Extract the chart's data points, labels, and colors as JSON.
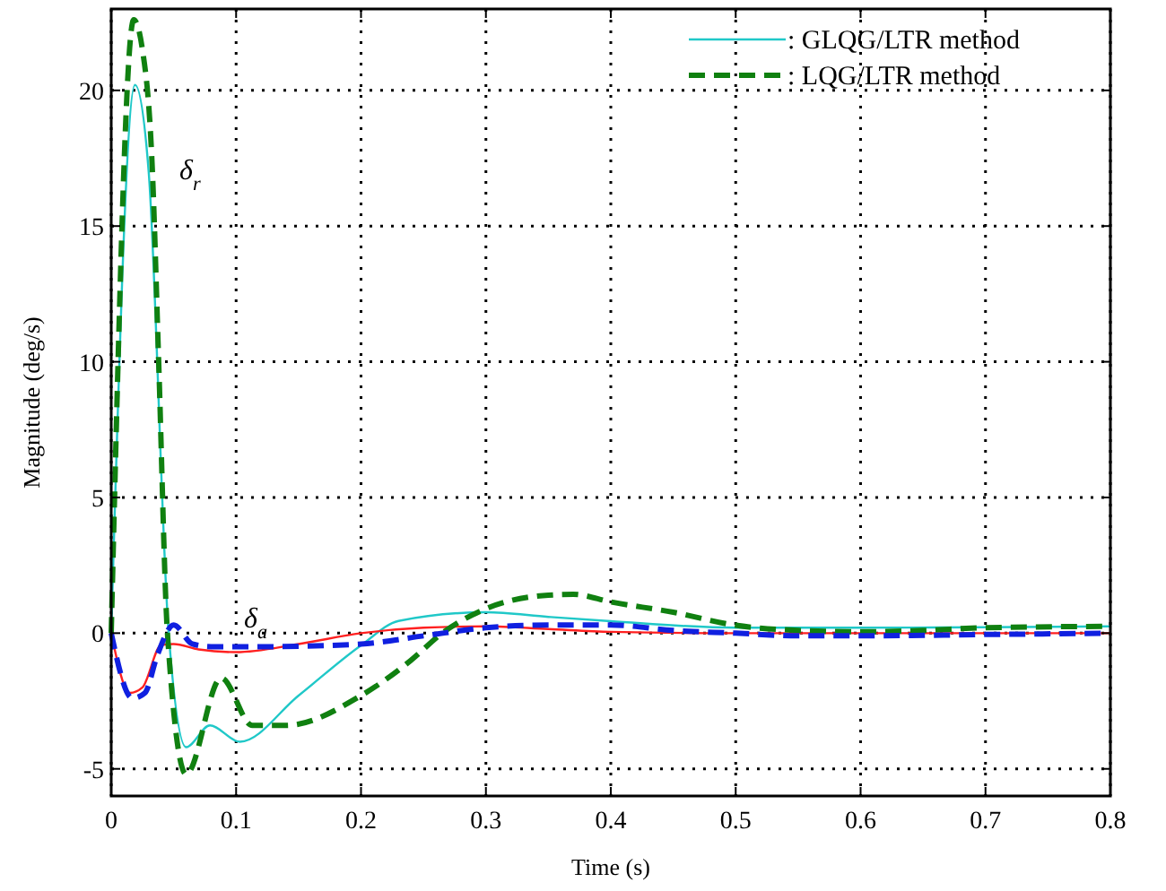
{
  "chart_data": {
    "type": "line",
    "xlabel": "Time (s)",
    "ylabel": "Magnitude (deg/s)",
    "xlim": [
      0,
      0.8
    ],
    "ylim": [
      -6,
      23
    ],
    "xticks": [
      0,
      0.1,
      0.2,
      0.3,
      0.4,
      0.5,
      0.6,
      0.7,
      0.8
    ],
    "yticks": [
      -5,
      0,
      5,
      10,
      15,
      20
    ],
    "grid": true,
    "legend": "top right",
    "annotations": [
      "δ$_{r}$",
      "δ$_{a}$"
    ],
    "series": [
      {
        "name": ": GLQG/LTR method",
        "color": "#20c8c8",
        "line_style": "solid",
        "x": [
          0,
          0.019,
          0.03,
          0.046,
          0.06,
          0.079,
          0.103,
          0.15,
          0.2,
          0.23,
          0.3,
          0.35,
          0.4,
          0.5,
          0.6,
          0.7,
          0.8
        ],
        "values": [
          0,
          20.2,
          17,
          0,
          -4.2,
          -3.4,
          -4.0,
          -2.3,
          -0.45,
          0.45,
          0.77,
          0.6,
          0.44,
          0.2,
          0.2,
          0.22,
          0.25
        ]
      },
      {
        "color": "#ff2020",
        "line_style": "solid",
        "x": [
          0,
          0.015,
          0.025,
          0.04,
          0.05,
          0.07,
          0.1,
          0.15,
          0.2,
          0.25,
          0.3,
          0.35,
          0.4,
          0.5,
          0.6,
          0.7,
          0.8
        ],
        "values": [
          0,
          -2.2,
          -2.0,
          -0.44,
          -0.4,
          -0.6,
          -0.7,
          -0.4,
          0,
          0.2,
          0.25,
          0.15,
          0.05,
          0,
          0,
          0,
          0
        ]
      },
      {
        "name": ": LQG/LTR method",
        "color": "#108010",
        "line_style": "dashed",
        "x": [
          0,
          0.018,
          0.025,
          0.033,
          0.038,
          0.045,
          0.06,
          0.088,
          0.113,
          0.14,
          0.2,
          0.24,
          0.265,
          0.3,
          0.35,
          0.37,
          0.4,
          0.45,
          0.5,
          0.55,
          0.6,
          0.65,
          0.7,
          0.8
        ],
        "values": [
          0,
          22.6,
          21.5,
          17,
          10,
          0,
          -5.2,
          -1.65,
          -3.4,
          -3.4,
          -2.3,
          -1,
          0,
          0.9,
          1.4,
          1.43,
          1.15,
          0.77,
          0.29,
          0.1,
          0.05,
          0.1,
          0.2,
          0.25
        ]
      },
      {
        "color": "#1020e0",
        "line_style": "dashed",
        "x": [
          0,
          0.017,
          0.027,
          0.037,
          0.05,
          0.065,
          0.08,
          0.12,
          0.2,
          0.25,
          0.3,
          0.35,
          0.4,
          0.45,
          0.5,
          0.55,
          0.6,
          0.7,
          0.8
        ],
        "values": [
          0,
          -2.4,
          -2.2,
          -0.8,
          0.3,
          -0.4,
          -0.5,
          -0.5,
          -0.4,
          -0.1,
          0.2,
          0.3,
          0.3,
          0.1,
          0,
          -0.1,
          -0.1,
          -0.05,
          0
        ]
      }
    ]
  }
}
